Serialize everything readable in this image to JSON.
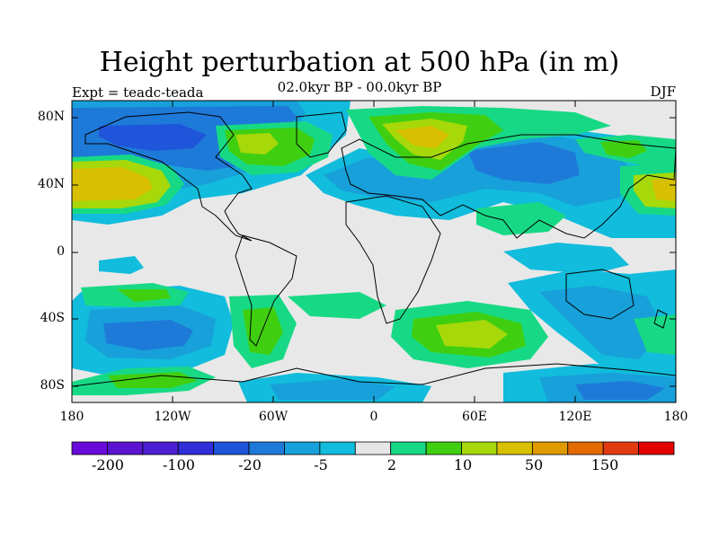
{
  "title": "Height perturbation at 500 hPa (in m)",
  "left_label": "Expt = teadc-teada",
  "center_label": "02.0kyr BP - 00.0kyr BP",
  "right_label": "DJF",
  "lat_labels": [
    "80N",
    "40N",
    "0",
    "40S",
    "80S"
  ],
  "lon_labels": [
    "180",
    "120W",
    "60W",
    "0",
    "60E",
    "120E",
    "180"
  ],
  "colorbar": {
    "colors": [
      "#6a0ad9",
      "#5a14cf",
      "#4b1fd1",
      "#2f2ed8",
      "#1f55da",
      "#1e7ad8",
      "#18a0da",
      "#11bcdc",
      "#e6e6e6",
      "#17d985",
      "#3fcf10",
      "#a6d80a",
      "#d8c000",
      "#df9a00",
      "#e26a00",
      "#e23a10",
      "#e20000"
    ],
    "labels": [
      "-200",
      "-100",
      "-20",
      "-5",
      "2",
      "10",
      "50",
      "150"
    ]
  },
  "colors": {
    "background": "#e8e8e8",
    "negative_light": "#11bcdc",
    "negative_mid": "#18a0da",
    "negative_dark": "#1e7ad8",
    "negative_darker": "#1f55da",
    "positive_light": "#17d985",
    "positive_mid": "#3fcf10",
    "positive_yellow": "#a6d80a",
    "positive_gold": "#d8c000"
  }
}
